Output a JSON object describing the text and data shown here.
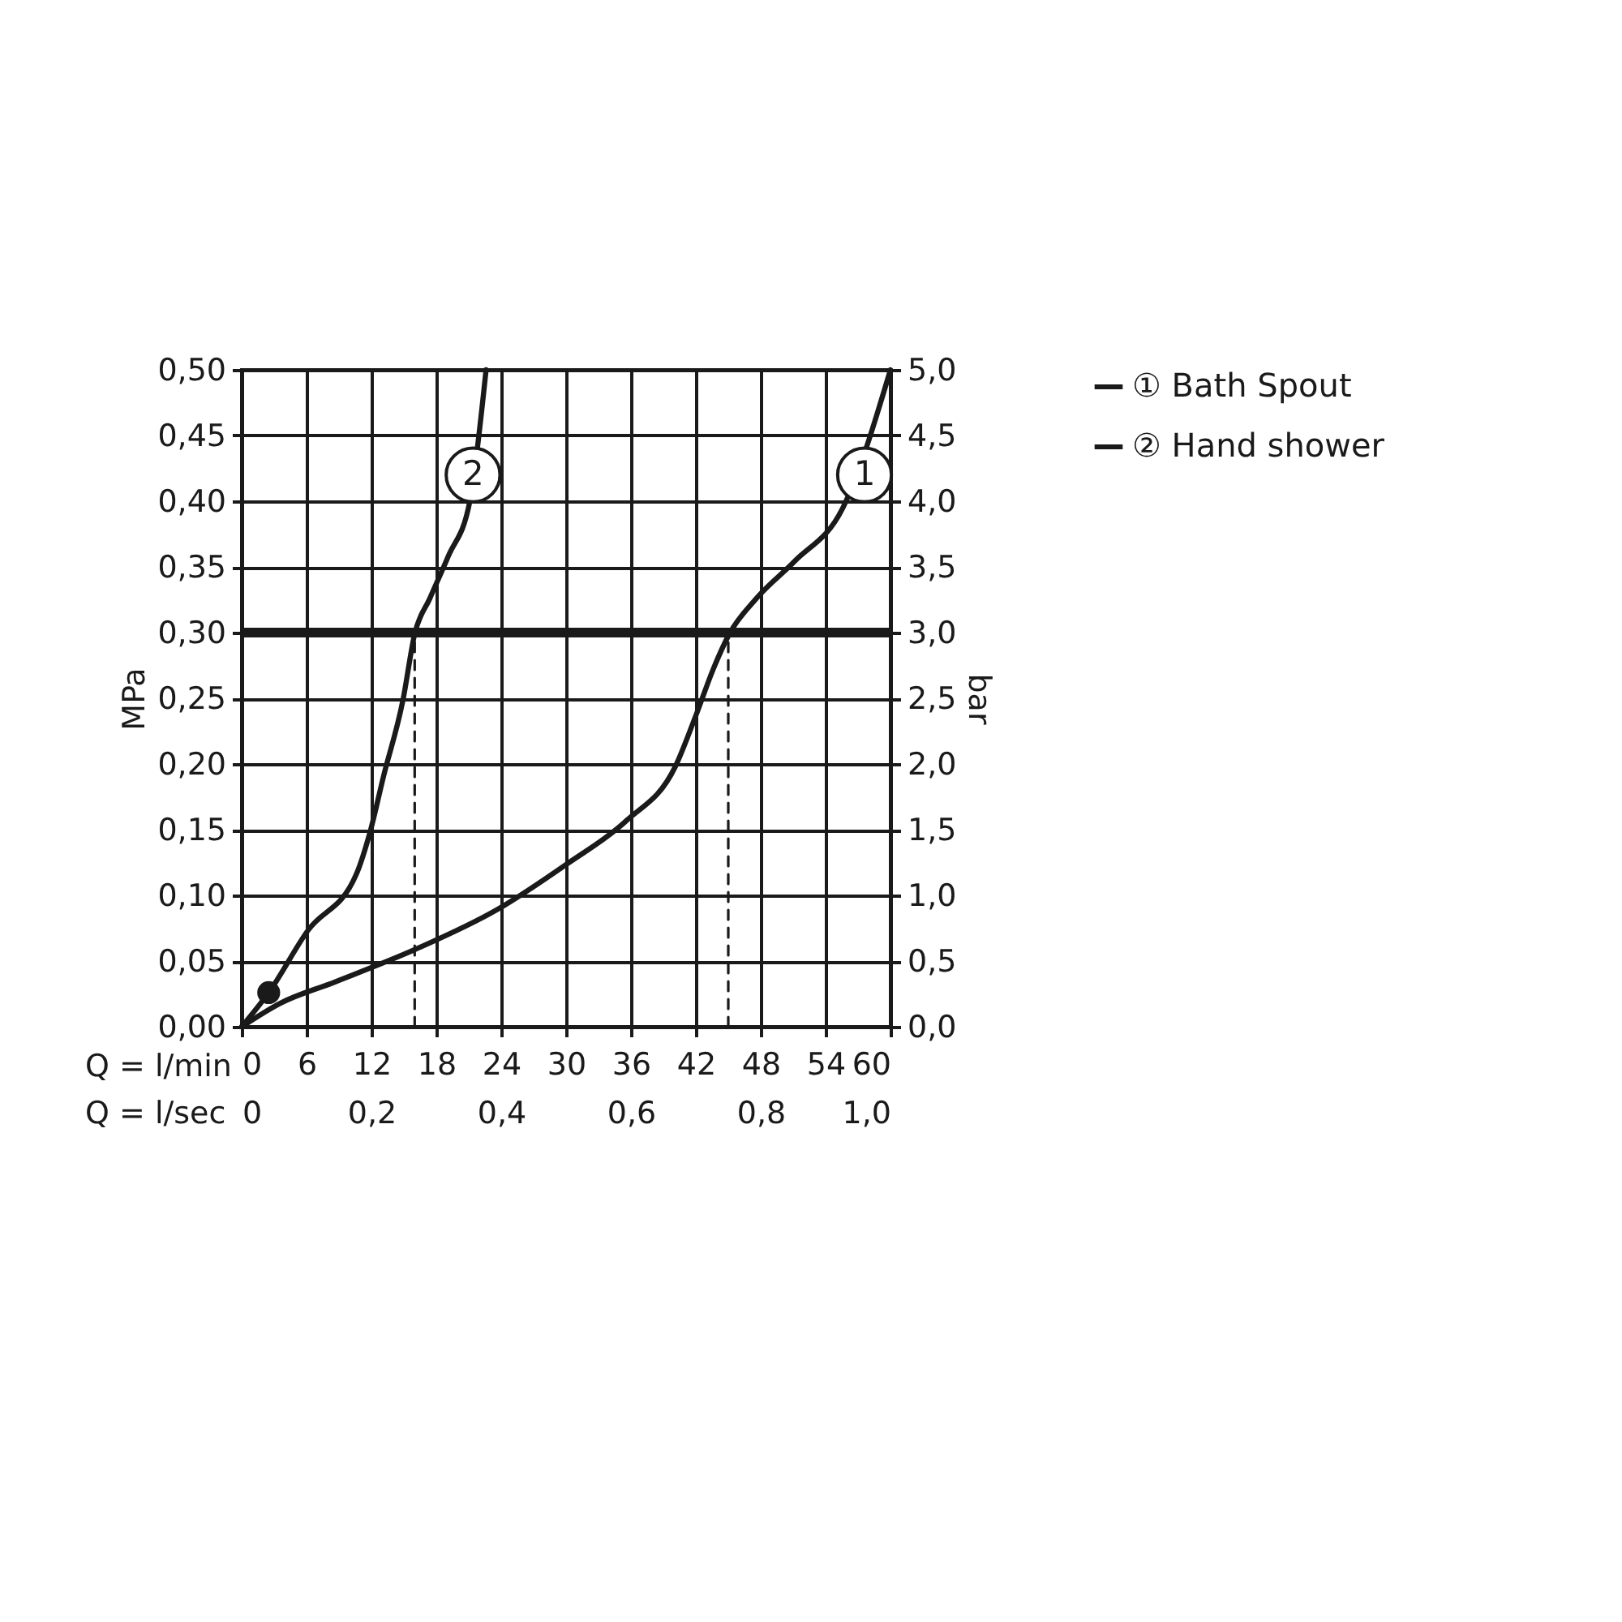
{
  "chart_data": {
    "type": "line",
    "xlabel": "Q = l/min",
    "ylabel": "MPa",
    "y2label": "bar",
    "x2label": "Q = l/sec",
    "xlim": [
      0,
      60
    ],
    "xticks": [
      0,
      6,
      12,
      18,
      24,
      30,
      36,
      42,
      48,
      54,
      60
    ],
    "x2lim": [
      0,
      1
    ],
    "x2ticks": [
      {
        "value": 0,
        "label": "0"
      },
      {
        "value": 0.2,
        "label": "0,2"
      },
      {
        "value": 0.4,
        "label": "0,4"
      },
      {
        "value": 0.6,
        "label": "0,6"
      },
      {
        "value": 0.8,
        "label": "0,8"
      },
      {
        "value": 1,
        "label": "1,0"
      }
    ],
    "ylim": [
      0,
      0.5
    ],
    "yticks": [
      {
        "value": 0,
        "label": "0,00"
      },
      {
        "value": 0.05,
        "label": "0,05"
      },
      {
        "value": 0.1,
        "label": "0,10"
      },
      {
        "value": 0.15,
        "label": "0,15"
      },
      {
        "value": 0.2,
        "label": "0,20"
      },
      {
        "value": 0.25,
        "label": "0,25"
      },
      {
        "value": 0.3,
        "label": "0,30"
      },
      {
        "value": 0.35,
        "label": "0,35"
      },
      {
        "value": 0.4,
        "label": "0,40"
      },
      {
        "value": 0.45,
        "label": "0,45"
      },
      {
        "value": 0.5,
        "label": "0,50"
      }
    ],
    "y2lim": [
      0,
      5
    ],
    "y2ticks": [
      {
        "value": 0,
        "label": "0,0"
      },
      {
        "value": 0.5,
        "label": "0,5"
      },
      {
        "value": 1,
        "label": "1,0"
      },
      {
        "value": 1.5,
        "label": "1,5"
      },
      {
        "value": 2,
        "label": "2,0"
      },
      {
        "value": 2.5,
        "label": "2,5"
      },
      {
        "value": 3,
        "label": "3,0"
      },
      {
        "value": 3.5,
        "label": "3,5"
      },
      {
        "value": 4,
        "label": "4,0"
      },
      {
        "value": 4.5,
        "label": "4,5"
      },
      {
        "value": 5,
        "label": "5,0"
      }
    ],
    "series": [
      {
        "name": "① Bath Spout",
        "color": "#1a1a1a",
        "x": [
          0,
          3.6,
          8.6,
          16.1,
          23.6,
          30.1,
          35.6,
          40.1,
          42.1,
          43.6,
          45.1,
          47.6,
          51.1,
          55.6,
          60
        ],
        "values": [
          0,
          0.018,
          0.034,
          0.059,
          0.089,
          0.124,
          0.157,
          0.198,
          0.239,
          0.272,
          0.299,
          0.326,
          0.354,
          0.395,
          0.5
        ]
      },
      {
        "name": "② Hand shower",
        "color": "#1a1a1a",
        "x": [
          0,
          2.5,
          6.1,
          10.6,
          11.9,
          13.1,
          14.9,
          16,
          17.4,
          19.1,
          21.1,
          22.6
        ],
        "values": [
          0,
          0.026,
          0.073,
          0.116,
          0.149,
          0.19,
          0.248,
          0.299,
          0.326,
          0.358,
          0.4,
          0.5
        ]
      },
      {
        "type": "scatter",
        "marker": "circle",
        "color": "#1a1a1a",
        "x": [
          2.5
        ],
        "values": [
          0.026
        ]
      },
      {
        "color": "#1a1a1a",
        "line_style": "dashed",
        "x": [
          16,
          16
        ],
        "values": [
          0,
          0.3
        ]
      },
      {
        "color": "#1a1a1a",
        "line_style": "dashed",
        "x": [
          45,
          45
        ],
        "values": [
          0,
          0.3
        ]
      }
    ],
    "ref_lines": [
      {
        "axis": "y",
        "value": 0.3,
        "color": "#1a1a1a"
      }
    ],
    "annotations": [
      {
        "text": "1",
        "x": 57.6,
        "y": 0.42
      },
      {
        "text": "2",
        "x": 21.4,
        "y": 0.42
      }
    ],
    "grid": true,
    "legend": "right"
  }
}
